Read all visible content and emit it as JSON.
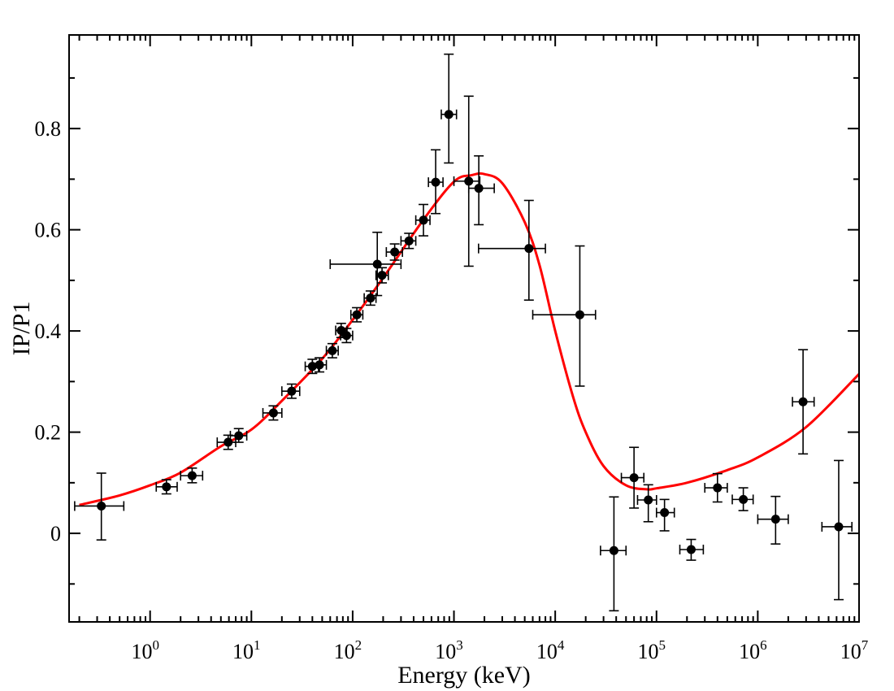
{
  "chart_data": {
    "type": "scatter",
    "title": "",
    "xlabel": "Energy  (keV)",
    "ylabel": "IP/P1",
    "xscale": "log",
    "xlim_log10": [
      -0.8,
      7
    ],
    "ylim": [
      -0.175,
      0.985
    ],
    "x_ticks": [
      {
        "base": "10",
        "exp": "0",
        "log10": 0
      },
      {
        "base": "10",
        "exp": "1",
        "log10": 1
      },
      {
        "base": "10",
        "exp": "2",
        "log10": 2
      },
      {
        "base": "10",
        "exp": "3",
        "log10": 3
      },
      {
        "base": "10",
        "exp": "4",
        "log10": 4
      },
      {
        "base": "10",
        "exp": "5",
        "log10": 5
      },
      {
        "base": "10",
        "exp": "6",
        "log10": 6
      },
      {
        "base": "10",
        "exp": "7",
        "log10": 7
      }
    ],
    "y_ticks": [
      {
        "label": "0",
        "value": 0
      },
      {
        "label": "0.2",
        "value": 0.2
      },
      {
        "label": "0.4",
        "value": 0.4
      },
      {
        "label": "0.6",
        "value": 0.6
      },
      {
        "label": "0.8",
        "value": 0.8
      }
    ],
    "colors": {
      "data": "#000000",
      "model": "#ff0000",
      "axes": "#000000"
    },
    "series": [
      {
        "name": "data",
        "kind": "points_with_errorbars",
        "points": [
          {
            "x": 0.33,
            "xlo": 0.18,
            "xhi": 0.55,
            "y": 0.054,
            "ylo": -0.013,
            "yhi": 0.119
          },
          {
            "x": 1.45,
            "xlo": 1.15,
            "xhi": 1.85,
            "y": 0.092,
            "ylo": 0.078,
            "yhi": 0.106
          },
          {
            "x": 2.6,
            "xlo": 2.0,
            "xhi": 3.3,
            "y": 0.114,
            "ylo": 0.1,
            "yhi": 0.129
          },
          {
            "x": 5.9,
            "xlo": 4.6,
            "xhi": 7.0,
            "y": 0.18,
            "ylo": 0.166,
            "yhi": 0.194
          },
          {
            "x": 7.5,
            "xlo": 6.2,
            "xhi": 9.0,
            "y": 0.193,
            "ylo": 0.18,
            "yhi": 0.207
          },
          {
            "x": 16.5,
            "xlo": 13.0,
            "xhi": 20.0,
            "y": 0.238,
            "ylo": 0.224,
            "yhi": 0.252
          },
          {
            "x": 25.0,
            "xlo": 20.0,
            "xhi": 30.0,
            "y": 0.281,
            "ylo": 0.267,
            "yhi": 0.295
          },
          {
            "x": 40.0,
            "xlo": 34.0,
            "xhi": 46.0,
            "y": 0.33,
            "ylo": 0.316,
            "yhi": 0.344
          },
          {
            "x": 47.0,
            "xlo": 40.0,
            "xhi": 55.0,
            "y": 0.333,
            "ylo": 0.319,
            "yhi": 0.347
          },
          {
            "x": 63.0,
            "xlo": 55.0,
            "xhi": 72.0,
            "y": 0.361,
            "ylo": 0.347,
            "yhi": 0.375
          },
          {
            "x": 77.0,
            "xlo": 68.0,
            "xhi": 88.0,
            "y": 0.401,
            "ylo": 0.387,
            "yhi": 0.415
          },
          {
            "x": 87.0,
            "xlo": 76.0,
            "xhi": 100.0,
            "y": 0.391,
            "ylo": 0.377,
            "yhi": 0.405
          },
          {
            "x": 110.0,
            "xlo": 96.0,
            "xhi": 126.0,
            "y": 0.432,
            "ylo": 0.418,
            "yhi": 0.446
          },
          {
            "x": 150.0,
            "xlo": 130.0,
            "xhi": 170.0,
            "y": 0.465,
            "ylo": 0.451,
            "yhi": 0.479
          },
          {
            "x": 175.0,
            "xlo": 60.0,
            "xhi": 300.0,
            "y": 0.532,
            "ylo": 0.47,
            "yhi": 0.595
          },
          {
            "x": 195.0,
            "xlo": 170.0,
            "xhi": 225.0,
            "y": 0.51,
            "ylo": 0.495,
            "yhi": 0.525
          },
          {
            "x": 260.0,
            "xlo": 215.0,
            "xhi": 310.0,
            "y": 0.556,
            "ylo": 0.54,
            "yhi": 0.572
          },
          {
            "x": 360.0,
            "xlo": 300.0,
            "xhi": 420.0,
            "y": 0.578,
            "ylo": 0.563,
            "yhi": 0.593
          },
          {
            "x": 500.0,
            "xlo": 420.0,
            "xhi": 580.0,
            "y": 0.619,
            "ylo": 0.588,
            "yhi": 0.65
          },
          {
            "x": 660.0,
            "xlo": 560.0,
            "xhi": 780.0,
            "y": 0.694,
            "ylo": 0.632,
            "yhi": 0.758
          },
          {
            "x": 890.0,
            "xlo": 750.0,
            "xhi": 1060.0,
            "y": 0.828,
            "ylo": 0.732,
            "yhi": 0.947
          },
          {
            "x": 1400.0,
            "xlo": 1000.0,
            "xhi": 1800.0,
            "y": 0.696,
            "ylo": 0.528,
            "yhi": 0.864
          },
          {
            "x": 1760.0,
            "xlo": 1400.0,
            "xhi": 2500.0,
            "y": 0.682,
            "ylo": 0.61,
            "yhi": 0.746
          },
          {
            "x": 5500.0,
            "xlo": 1750.0,
            "xhi": 8000.0,
            "y": 0.563,
            "ylo": 0.461,
            "yhi": 0.658
          },
          {
            "x": 17500.0,
            "xlo": 6000.0,
            "xhi": 25000.0,
            "y": 0.432,
            "ylo": 0.291,
            "yhi": 0.568
          },
          {
            "x": 38000.0,
            "xlo": 28000.0,
            "xhi": 50000.0,
            "y": -0.034,
            "ylo": -0.153,
            "yhi": 0.072
          },
          {
            "x": 60000.0,
            "xlo": 45000.0,
            "xhi": 75000.0,
            "y": 0.11,
            "ylo": 0.05,
            "yhi": 0.17
          },
          {
            "x": 83000.0,
            "xlo": 65000.0,
            "xhi": 100000.0,
            "y": 0.066,
            "ylo": 0.023,
            "yhi": 0.096
          },
          {
            "x": 120000.0,
            "xlo": 100000.0,
            "xhi": 150000.0,
            "y": 0.041,
            "ylo": 0.005,
            "yhi": 0.067
          },
          {
            "x": 220000.0,
            "xlo": 170000.0,
            "xhi": 290000.0,
            "y": -0.032,
            "ylo": -0.053,
            "yhi": -0.012
          },
          {
            "x": 400000.0,
            "xlo": 300000.0,
            "xhi": 500000.0,
            "y": 0.09,
            "ylo": 0.062,
            "yhi": 0.118
          },
          {
            "x": 720000.0,
            "xlo": 560000.0,
            "xhi": 900000.0,
            "y": 0.067,
            "ylo": 0.045,
            "yhi": 0.09
          },
          {
            "x": 1500000.0,
            "xlo": 1000000.0,
            "xhi": 2000000.0,
            "y": 0.028,
            "ylo": -0.021,
            "yhi": 0.073
          },
          {
            "x": 2800000.0,
            "xlo": 2200000.0,
            "xhi": 3600000.0,
            "y": 0.26,
            "ylo": 0.157,
            "yhi": 0.363
          },
          {
            "x": 6300000.0,
            "xlo": 4300000.0,
            "xhi": 8500000.0,
            "y": 0.013,
            "ylo": -0.131,
            "yhi": 0.144
          }
        ]
      },
      {
        "name": "model",
        "kind": "line",
        "x": [
          0.2,
          0.5,
          1,
          2,
          5,
          10,
          20,
          50,
          100,
          200,
          500,
          1000,
          1500,
          2000,
          3000,
          5000,
          7000,
          10000,
          15000,
          20000,
          30000,
          50000,
          80000,
          100000,
          200000,
          500000,
          1000000,
          3000000,
          10000000
        ],
        "y": [
          0.056,
          0.075,
          0.095,
          0.12,
          0.172,
          0.205,
          0.262,
          0.345,
          0.422,
          0.505,
          0.62,
          0.695,
          0.708,
          0.71,
          0.692,
          0.615,
          0.53,
          0.4,
          0.27,
          0.2,
          0.133,
          0.095,
          0.087,
          0.089,
          0.1,
          0.125,
          0.15,
          0.21,
          0.315
        ]
      }
    ]
  }
}
